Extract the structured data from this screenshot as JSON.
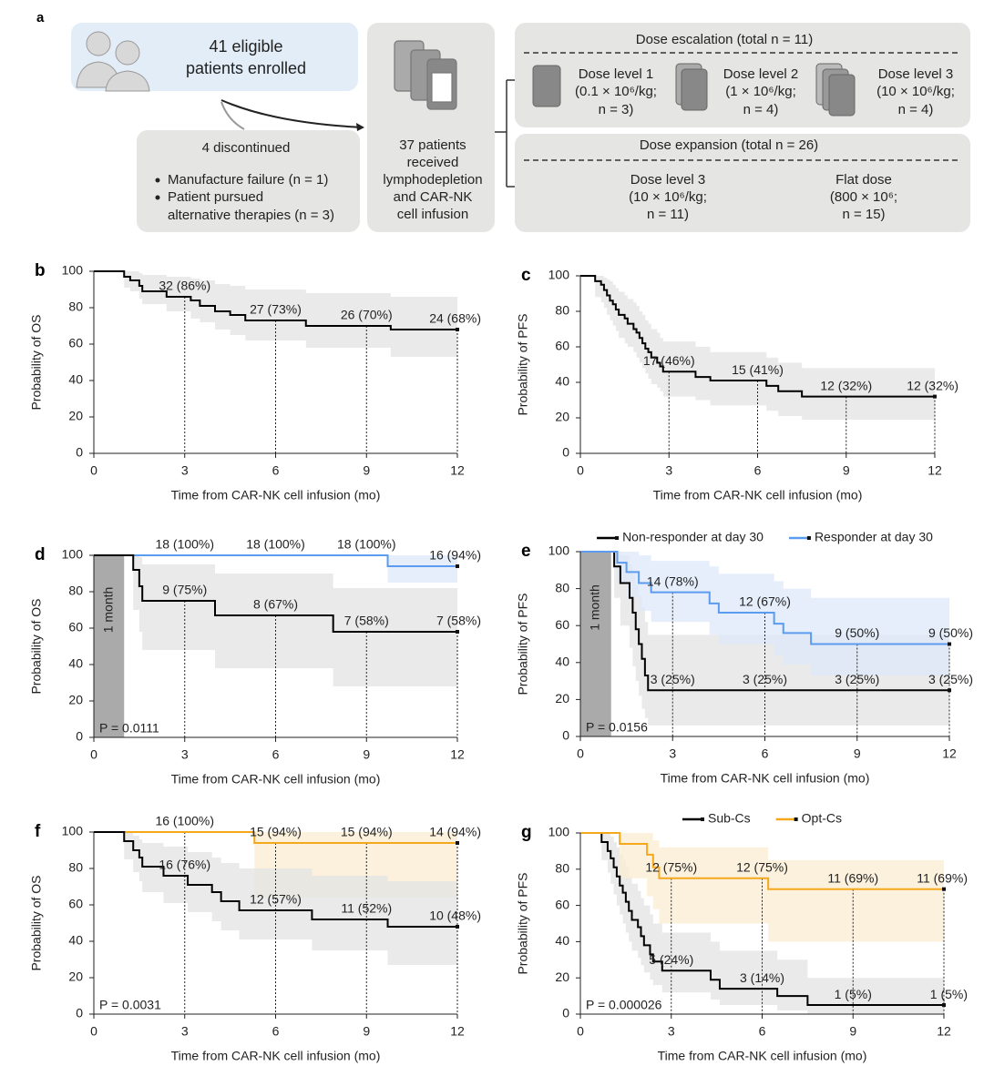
{
  "diagram": {
    "label": "a",
    "enrolled": {
      "lines": [
        "41 eligible",
        "patients enrolled"
      ]
    },
    "discontinued": {
      "title": "4 discontinued",
      "items": [
        [
          "Manufacture failure (n = 1)"
        ],
        [
          "Patient pursued",
          "alternative therapies (n = 3)"
        ]
      ]
    },
    "infusion": {
      "lines": [
        "37 patients",
        "received",
        "lymphodepletion",
        "and CAR-NK",
        "cell infusion"
      ]
    },
    "escalation": {
      "title": "Dose escalation (total n = 11)",
      "levels": [
        {
          "lines": [
            "Dose level 1",
            "(0.1 × 10⁶/kg;",
            "n = 3)"
          ]
        },
        {
          "lines": [
            "Dose level 2",
            "(1 × 10⁶/kg;",
            "n = 4)"
          ]
        },
        {
          "lines": [
            "Dose level 3",
            "(10 × 10⁶/kg;",
            "n = 4)"
          ]
        }
      ]
    },
    "expansion": {
      "title": "Dose expansion (total n = 26)",
      "levels": [
        {
          "lines": [
            "Dose level 3",
            "(10 × 10⁶/kg;",
            "n = 11)"
          ]
        },
        {
          "lines": [
            "Flat dose",
            "(800 × 10⁶;",
            "n = 15)"
          ]
        }
      ]
    }
  },
  "chart_data": [
    {
      "type": "line",
      "step": true,
      "label": "b",
      "ylabel": "Probability of OS",
      "xlabel": "Time from CAR-NK cell infusion (mo)",
      "xlim": [
        0,
        12
      ],
      "ylim": [
        0,
        100
      ],
      "xticks": [
        0,
        3,
        6,
        9,
        12
      ],
      "yticks": [
        0,
        20,
        40,
        60,
        80,
        100
      ],
      "series": [
        {
          "color": "#000000",
          "band_color": "#e3e3e3",
          "drop_lines": true,
          "x": [
            0,
            1.0,
            1.2,
            1.5,
            1.6,
            2.4,
            3.2,
            3.5,
            4.0,
            4.5,
            5.0,
            7.0,
            9.8,
            12
          ],
          "values": [
            100,
            97,
            95,
            92,
            89,
            86,
            84,
            81,
            78,
            76,
            73,
            70,
            68,
            68
          ],
          "upper": [
            100,
            100,
            100,
            99,
            98,
            97,
            96,
            95,
            93,
            92,
            90,
            88,
            86,
            86
          ],
          "lower": [
            100,
            91,
            89,
            85,
            82,
            78,
            74,
            72,
            68,
            65,
            62,
            58,
            53,
            53
          ],
          "annotations": [
            {
              "x": 3,
              "y": 86,
              "label": "32 (86%)"
            },
            {
              "x": 6,
              "y": 73,
              "label": "27 (73%)"
            },
            {
              "x": 9,
              "y": 70,
              "label": "26 (70%)"
            },
            {
              "x": 12,
              "y": 68,
              "label": "24 (68%)"
            }
          ]
        }
      ]
    },
    {
      "type": "line",
      "step": true,
      "label": "c",
      "ylabel": "Probability of PFS",
      "xlabel": "Time from CAR-NK cell infusion (mo)",
      "xlim": [
        0,
        12
      ],
      "ylim": [
        0,
        100
      ],
      "xticks": [
        0,
        3,
        6,
        9,
        12
      ],
      "yticks": [
        0,
        20,
        40,
        60,
        80,
        100
      ],
      "series": [
        {
          "color": "#000000",
          "band_color": "#e3e3e3",
          "drop_lines": true,
          "x": [
            0,
            0.5,
            0.7,
            0.8,
            0.9,
            1.0,
            1.1,
            1.2,
            1.3,
            1.5,
            1.6,
            1.8,
            1.9,
            2.0,
            2.1,
            2.2,
            2.3,
            2.4,
            2.6,
            2.7,
            2.8,
            3.9,
            4.4,
            6.3,
            6.7,
            7.5,
            12
          ],
          "values": [
            100,
            97,
            95,
            92,
            89,
            86,
            84,
            81,
            78,
            76,
            73,
            70,
            68,
            65,
            62,
            59,
            57,
            54,
            51,
            49,
            46,
            43,
            41,
            38,
            35,
            32,
            32
          ],
          "upper": [
            100,
            100,
            100,
            99,
            98,
            97,
            95,
            93,
            91,
            89,
            87,
            85,
            83,
            80,
            78,
            75,
            73,
            70,
            68,
            65,
            63,
            60,
            57,
            54,
            51,
            48,
            48
          ],
          "lower": [
            100,
            88,
            85,
            82,
            78,
            75,
            72,
            69,
            65,
            62,
            60,
            57,
            54,
            51,
            48,
            45,
            42,
            39,
            37,
            35,
            32,
            30,
            27,
            24,
            21,
            19,
            19
          ],
          "annotations": [
            {
              "x": 3,
              "y": 46,
              "label": "17 (46%)"
            },
            {
              "x": 6,
              "y": 41,
              "label": "15 (41%)"
            },
            {
              "x": 9,
              "y": 32,
              "label": "12 (32%)"
            },
            {
              "x": 12,
              "y": 32,
              "label": "12 (32%)"
            }
          ]
        }
      ]
    },
    {
      "type": "line",
      "step": true,
      "label": "d",
      "ylabel": "Probability of OS",
      "xlabel": "Time from CAR-NK cell infusion (mo)",
      "xlim": [
        0,
        12
      ],
      "ylim": [
        0,
        100
      ],
      "xticks": [
        0,
        3,
        6,
        9,
        12
      ],
      "yticks": [
        0,
        20,
        40,
        60,
        80,
        100
      ],
      "shade": {
        "xlim": [
          0,
          1
        ],
        "label": "1 month",
        "color": "#aaaaaa"
      },
      "p_value": "P = 0.0111",
      "series": [
        {
          "color": "#5b9bf0",
          "band_color": "#dce8f8",
          "drop_lines": false,
          "x": [
            0,
            9.7,
            12
          ],
          "values": [
            100,
            94,
            94
          ],
          "upper": [
            100,
            100,
            100
          ],
          "lower": [
            100,
            85,
            85
          ],
          "annotations": [
            {
              "x": 3,
              "y": 100,
              "label": "18 (100%)"
            },
            {
              "x": 6,
              "y": 100,
              "label": "18 (100%)"
            },
            {
              "x": 9,
              "y": 100,
              "label": "18 (100%)"
            },
            {
              "x": 12,
              "y": 94,
              "label": "16 (94%)"
            }
          ]
        },
        {
          "color": "#000000",
          "band_color": "#e3e3e3",
          "drop_lines": true,
          "x": [
            0,
            1.3,
            1.5,
            1.6,
            4.0,
            7.9,
            12
          ],
          "values": [
            100,
            92,
            83,
            75,
            67,
            58,
            58
          ],
          "upper": [
            100,
            100,
            99,
            95,
            90,
            82,
            82
          ],
          "lower": [
            100,
            70,
            58,
            48,
            38,
            28,
            28
          ],
          "annotations": [
            {
              "x": 3,
              "y": 75,
              "label": "9 (75%)"
            },
            {
              "x": 6,
              "y": 67,
              "label": "8 (67%)"
            },
            {
              "x": 9,
              "y": 58,
              "label": "7 (58%)"
            },
            {
              "x": 12,
              "y": 58,
              "label": "7 (58%)"
            }
          ]
        }
      ]
    },
    {
      "type": "line",
      "step": true,
      "label": "e",
      "ylabel": "Probability of PFS",
      "xlabel": "Time from CAR-NK cell infusion (mo)",
      "xlim": [
        0,
        12
      ],
      "ylim": [
        0,
        100
      ],
      "xticks": [
        0,
        3,
        6,
        9,
        12
      ],
      "yticks": [
        0,
        20,
        40,
        60,
        80,
        100
      ],
      "shade": {
        "xlim": [
          0,
          1
        ],
        "label": "1 month",
        "color": "#aaaaaa"
      },
      "p_value": "P = 0.0156",
      "legend": "top",
      "series": [
        {
          "name": "Non-responder at day 30",
          "color": "#000000",
          "band_color": "#e3e3e3",
          "drop_lines": false,
          "x": [
            0,
            1.1,
            1.3,
            1.6,
            1.7,
            1.8,
            1.9,
            2.0,
            2.1,
            2.2,
            12
          ],
          "values": [
            100,
            92,
            83,
            75,
            67,
            58,
            50,
            42,
            33,
            25,
            25
          ],
          "upper": [
            100,
            100,
            98,
            93,
            88,
            82,
            76,
            70,
            62,
            55,
            50
          ],
          "lower": [
            100,
            75,
            60,
            48,
            38,
            30,
            22,
            15,
            10,
            6,
            6
          ],
          "annotations": [
            {
              "x": 3,
              "y": 25,
              "label": "3 (25%)"
            },
            {
              "x": 6,
              "y": 25,
              "label": "3 (25%)"
            },
            {
              "x": 9,
              "y": 25,
              "label": "3 (25%)"
            },
            {
              "x": 12,
              "y": 25,
              "label": "3 (25%)"
            }
          ]
        },
        {
          "name": "Responder at day 30",
          "color": "#5b9bf0",
          "band_color": "#dce8f8",
          "drop_lines": true,
          "x": [
            0,
            1.2,
            1.5,
            1.9,
            2.3,
            4.2,
            4.5,
            6.3,
            6.6,
            7.5,
            12
          ],
          "values": [
            100,
            94,
            89,
            83,
            78,
            72,
            67,
            61,
            56,
            50,
            50
          ],
          "upper": [
            100,
            100,
            100,
            98,
            95,
            92,
            88,
            84,
            80,
            75,
            70
          ],
          "lower": [
            100,
            83,
            75,
            68,
            62,
            55,
            50,
            44,
            39,
            33,
            33
          ],
          "annotations": [
            {
              "x": 3,
              "y": 78,
              "label": "14 (78%)"
            },
            {
              "x": 6,
              "y": 67,
              "label": "12 (67%)"
            },
            {
              "x": 9,
              "y": 50,
              "label": "9 (50%)"
            },
            {
              "x": 12,
              "y": 50,
              "label": "9 (50%)"
            }
          ]
        }
      ]
    },
    {
      "type": "line",
      "step": true,
      "label": "f",
      "ylabel": "Probability of OS",
      "xlabel": "Time from CAR-NK cell infusion (mo)",
      "xlim": [
        0,
        12
      ],
      "ylim": [
        0,
        100
      ],
      "xticks": [
        0,
        3,
        6,
        9,
        12
      ],
      "yticks": [
        0,
        20,
        40,
        60,
        80,
        100
      ],
      "p_value": "P = 0.0031",
      "series": [
        {
          "color": "#f5a81c",
          "band_color": "#fbecd0",
          "drop_lines": true,
          "x": [
            0,
            5.3,
            12
          ],
          "values": [
            100,
            94,
            94
          ],
          "upper": [
            100,
            100,
            100
          ],
          "lower": [
            100,
            64,
            64
          ],
          "annotations": [
            {
              "x": 3,
              "y": 100,
              "label": "16 (100%)"
            },
            {
              "x": 6,
              "y": 94,
              "label": "15 (94%)"
            },
            {
              "x": 9,
              "y": 94,
              "label": "15 (94%)"
            },
            {
              "x": 12,
              "y": 94,
              "label": "14 (94%)"
            }
          ]
        },
        {
          "color": "#000000",
          "band_color": "#e3e3e3",
          "drop_lines": false,
          "x": [
            0,
            1.0,
            1.3,
            1.5,
            1.6,
            2.3,
            3.1,
            3.9,
            4.2,
            4.8,
            7.2,
            9.7,
            12
          ],
          "values": [
            100,
            95,
            90,
            86,
            81,
            76,
            71,
            67,
            62,
            57,
            52,
            48,
            48
          ],
          "upper": [
            100,
            100,
            98,
            96,
            94,
            92,
            89,
            86,
            83,
            80,
            76,
            73,
            73
          ],
          "lower": [
            100,
            85,
            78,
            73,
            67,
            61,
            56,
            51,
            46,
            41,
            35,
            27,
            27
          ],
          "annotations": [
            {
              "x": 3,
              "y": 76,
              "label": "16 (76%)"
            },
            {
              "x": 6,
              "y": 57,
              "label": "12 (57%)"
            },
            {
              "x": 9,
              "y": 52,
              "label": "11 (52%)"
            },
            {
              "x": 12,
              "y": 48,
              "label": "10 (48%)"
            }
          ]
        }
      ]
    },
    {
      "type": "line",
      "step": true,
      "label": "g",
      "ylabel": "Probability of PFS",
      "xlabel": "Time from CAR-NK cell infusion (mo)",
      "xlim": [
        0,
        12
      ],
      "ylim": [
        0,
        100
      ],
      "xticks": [
        0,
        3,
        6,
        9,
        12
      ],
      "yticks": [
        0,
        20,
        40,
        60,
        80,
        100
      ],
      "p_value": "P = 0.000026",
      "legend": "top",
      "series": [
        {
          "name": "Sub-Cs",
          "color": "#000000",
          "band_color": "#e3e3e3",
          "drop_lines": false,
          "x": [
            0,
            0.7,
            0.9,
            1.0,
            1.1,
            1.2,
            1.3,
            1.4,
            1.5,
            1.6,
            1.7,
            1.9,
            2.0,
            2.1,
            2.3,
            2.4,
            2.7,
            4.3,
            4.6,
            6.5,
            7.5,
            12
          ],
          "values": [
            100,
            95,
            90,
            86,
            81,
            76,
            71,
            67,
            62,
            57,
            52,
            48,
            43,
            38,
            33,
            29,
            24,
            19,
            14,
            10,
            5,
            5
          ],
          "upper": [
            100,
            100,
            100,
            98,
            95,
            92,
            88,
            85,
            81,
            76,
            72,
            68,
            64,
            60,
            55,
            50,
            45,
            40,
            35,
            30,
            20,
            20
          ],
          "lower": [
            100,
            85,
            78,
            72,
            66,
            60,
            55,
            50,
            45,
            40,
            35,
            31,
            27,
            23,
            19,
            16,
            12,
            8,
            5,
            2,
            0,
            0
          ],
          "annotations": [
            {
              "x": 3,
              "y": 24,
              "label": "5 (24%)"
            },
            {
              "x": 6,
              "y": 14,
              "label": "3 (14%)"
            },
            {
              "x": 9,
              "y": 5,
              "label": "1 (5%)"
            },
            {
              "x": 12,
              "y": 5,
              "label": "1 (5%)"
            }
          ]
        },
        {
          "name": "Opt-Cs",
          "color": "#f5a81c",
          "band_color": "#fbecd0",
          "drop_lines": true,
          "x": [
            0,
            1.3,
            2.2,
            2.4,
            2.6,
            6.2,
            12
          ],
          "values": [
            100,
            94,
            88,
            81,
            75,
            69,
            69
          ],
          "upper": [
            100,
            100,
            100,
            96,
            92,
            85,
            85
          ],
          "lower": [
            100,
            75,
            65,
            58,
            50,
            40,
            40
          ],
          "annotations": [
            {
              "x": 3,
              "y": 75,
              "label": "12 (75%)"
            },
            {
              "x": 6,
              "y": 75,
              "label": "12 (75%)"
            },
            {
              "x": 9,
              "y": 69,
              "label": "11 (69%)"
            },
            {
              "x": 12,
              "y": 69,
              "label": "11 (69%)"
            }
          ]
        }
      ]
    }
  ]
}
